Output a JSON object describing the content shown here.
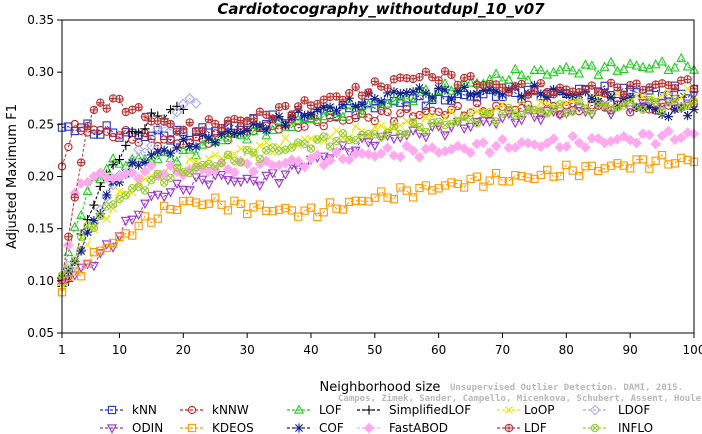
{
  "chart_data": {
    "type": "line",
    "title": "Cardiotocography_withoutdupl_10_v07",
    "xlabel": "Neighborhood size",
    "ylabel": "Adjusted Maximum F1",
    "xlim": [
      1,
      100
    ],
    "ylim": [
      0.05,
      0.35
    ],
    "x_ticks": [
      "1",
      "10",
      "20",
      "30",
      "40",
      "50",
      "60",
      "70",
      "80",
      "90",
      "100"
    ],
    "y_ticks": [
      "0.05",
      "0.10",
      "0.15",
      "0.20",
      "0.25",
      "0.30",
      "0.35"
    ],
    "grid": false,
    "legend_position": "bottom",
    "series": [
      {
        "name": "kNN",
        "color": "#2233cc",
        "marker": "square",
        "x_max": 100,
        "keypoints": [
          [
            1,
            0.245
          ],
          [
            3,
            0.248
          ],
          [
            5,
            0.245
          ],
          [
            8,
            0.243
          ],
          [
            12,
            0.24
          ],
          [
            20,
            0.24
          ],
          [
            30,
            0.25
          ],
          [
            40,
            0.258
          ],
          [
            50,
            0.268
          ],
          [
            60,
            0.275
          ],
          [
            70,
            0.28
          ],
          [
            80,
            0.28
          ],
          [
            90,
            0.282
          ],
          [
            100,
            0.28
          ]
        ]
      },
      {
        "name": "kNNW",
        "color": "#cc2222",
        "marker": "circle",
        "x_max": 100,
        "keypoints": [
          [
            1,
            0.215
          ],
          [
            3,
            0.245
          ],
          [
            5,
            0.245
          ],
          [
            10,
            0.24
          ],
          [
            15,
            0.235
          ],
          [
            20,
            0.232
          ],
          [
            25,
            0.238
          ],
          [
            30,
            0.245
          ],
          [
            40,
            0.252
          ],
          [
            50,
            0.258
          ],
          [
            60,
            0.262
          ],
          [
            70,
            0.265
          ],
          [
            80,
            0.266
          ],
          [
            90,
            0.267
          ],
          [
            100,
            0.267
          ]
        ]
      },
      {
        "name": "LOF",
        "color": "#22cc22",
        "marker": "triangle-up",
        "x_max": 100,
        "keypoints": [
          [
            1,
            0.1
          ],
          [
            3,
            0.15
          ],
          [
            5,
            0.185
          ],
          [
            8,
            0.21
          ],
          [
            12,
            0.215
          ],
          [
            20,
            0.22
          ],
          [
            25,
            0.235
          ],
          [
            30,
            0.24
          ],
          [
            40,
            0.255
          ],
          [
            50,
            0.268
          ],
          [
            60,
            0.282
          ],
          [
            70,
            0.295
          ],
          [
            80,
            0.302
          ],
          [
            90,
            0.305
          ],
          [
            100,
            0.307
          ]
        ]
      },
      {
        "name": "SimplifiedLOF",
        "color": "#000000",
        "marker": "plus",
        "x_max": 20,
        "keypoints": [
          [
            1,
            0.09
          ],
          [
            3,
            0.12
          ],
          [
            5,
            0.16
          ],
          [
            7,
            0.19
          ],
          [
            9,
            0.21
          ],
          [
            11,
            0.23
          ],
          [
            13,
            0.245
          ],
          [
            15,
            0.255
          ],
          [
            17,
            0.26
          ],
          [
            19,
            0.265
          ],
          [
            20,
            0.265
          ]
        ]
      },
      {
        "name": "LoOP",
        "color": "#e8e800",
        "marker": "x",
        "x_max": 100,
        "keypoints": [
          [
            1,
            0.095
          ],
          [
            5,
            0.14
          ],
          [
            10,
            0.18
          ],
          [
            15,
            0.2
          ],
          [
            20,
            0.21
          ],
          [
            30,
            0.225
          ],
          [
            40,
            0.235
          ],
          [
            50,
            0.245
          ],
          [
            60,
            0.255
          ],
          [
            70,
            0.265
          ],
          [
            80,
            0.27
          ],
          [
            90,
            0.275
          ],
          [
            100,
            0.278
          ]
        ]
      },
      {
        "name": "LDOF",
        "color": "#aaaaee",
        "marker": "diamond",
        "x_max": 22,
        "keypoints": [
          [
            1,
            0.1
          ],
          [
            4,
            0.13
          ],
          [
            7,
            0.17
          ],
          [
            10,
            0.2
          ],
          [
            13,
            0.22
          ],
          [
            16,
            0.24
          ],
          [
            19,
            0.26
          ],
          [
            21,
            0.275
          ],
          [
            22,
            0.272
          ]
        ]
      },
      {
        "name": "ODIN",
        "color": "#9933cc",
        "marker": "triangle-down",
        "x_max": 100,
        "keypoints": [
          [
            1,
            0.1
          ],
          [
            4,
            0.11
          ],
          [
            8,
            0.13
          ],
          [
            12,
            0.16
          ],
          [
            15,
            0.18
          ],
          [
            20,
            0.19
          ],
          [
            25,
            0.2
          ],
          [
            30,
            0.195
          ],
          [
            35,
            0.2
          ],
          [
            40,
            0.215
          ],
          [
            45,
            0.225
          ],
          [
            50,
            0.235
          ],
          [
            60,
            0.245
          ],
          [
            70,
            0.255
          ],
          [
            80,
            0.262
          ],
          [
            90,
            0.268
          ],
          [
            100,
            0.272
          ]
        ]
      },
      {
        "name": "KDEOS",
        "color": "#ff9900",
        "marker": "square",
        "x_max": 100,
        "keypoints": [
          [
            1,
            0.095
          ],
          [
            4,
            0.11
          ],
          [
            7,
            0.13
          ],
          [
            10,
            0.14
          ],
          [
            15,
            0.16
          ],
          [
            20,
            0.175
          ],
          [
            25,
            0.175
          ],
          [
            30,
            0.17
          ],
          [
            35,
            0.168
          ],
          [
            40,
            0.165
          ],
          [
            45,
            0.172
          ],
          [
            50,
            0.18
          ],
          [
            55,
            0.185
          ],
          [
            60,
            0.19
          ],
          [
            65,
            0.195
          ],
          [
            70,
            0.198
          ],
          [
            75,
            0.2
          ],
          [
            80,
            0.205
          ],
          [
            85,
            0.208
          ],
          [
            90,
            0.212
          ],
          [
            95,
            0.215
          ],
          [
            100,
            0.215
          ]
        ]
      },
      {
        "name": "COF",
        "color": "#112288",
        "marker": "asterisk",
        "x_max": 100,
        "keypoints": [
          [
            1,
            0.1
          ],
          [
            4,
            0.13
          ],
          [
            7,
            0.17
          ],
          [
            10,
            0.2
          ],
          [
            15,
            0.22
          ],
          [
            20,
            0.23
          ],
          [
            30,
            0.245
          ],
          [
            40,
            0.262
          ],
          [
            50,
            0.275
          ],
          [
            55,
            0.282
          ],
          [
            60,
            0.28
          ],
          [
            70,
            0.282
          ],
          [
            80,
            0.28
          ],
          [
            90,
            0.272
          ],
          [
            95,
            0.26
          ],
          [
            100,
            0.265
          ]
        ]
      },
      {
        "name": "FastABOD",
        "color": "#ffaaee",
        "marker": "diamond-filled",
        "x_max": 100,
        "keypoints": [
          [
            1,
            0.1
          ],
          [
            3,
            0.18
          ],
          [
            5,
            0.2
          ],
          [
            10,
            0.2
          ],
          [
            15,
            0.205
          ],
          [
            20,
            0.205
          ],
          [
            30,
            0.21
          ],
          [
            40,
            0.215
          ],
          [
            50,
            0.222
          ],
          [
            60,
            0.225
          ],
          [
            70,
            0.23
          ],
          [
            80,
            0.232
          ],
          [
            90,
            0.236
          ],
          [
            100,
            0.24
          ]
        ]
      },
      {
        "name": "LDF",
        "color": "#bb3333",
        "marker": "circle-plus",
        "x_max": 100,
        "keypoints": [
          [
            1,
            0.1
          ],
          [
            3,
            0.18
          ],
          [
            5,
            0.25
          ],
          [
            7,
            0.27
          ],
          [
            9,
            0.272
          ],
          [
            12,
            0.265
          ],
          [
            15,
            0.255
          ],
          [
            20,
            0.245
          ],
          [
            30,
            0.255
          ],
          [
            40,
            0.27
          ],
          [
            50,
            0.285
          ],
          [
            55,
            0.295
          ],
          [
            60,
            0.297
          ],
          [
            65,
            0.292
          ],
          [
            70,
            0.285
          ],
          [
            80,
            0.282
          ],
          [
            90,
            0.285
          ],
          [
            100,
            0.29
          ]
        ]
      },
      {
        "name": "INFLO",
        "color": "#99cc33",
        "marker": "circle-x",
        "x_max": 100,
        "keypoints": [
          [
            1,
            0.1
          ],
          [
            5,
            0.15
          ],
          [
            10,
            0.18
          ],
          [
            15,
            0.195
          ],
          [
            20,
            0.205
          ],
          [
            30,
            0.22
          ],
          [
            40,
            0.232
          ],
          [
            50,
            0.24
          ],
          [
            60,
            0.25
          ],
          [
            70,
            0.26
          ],
          [
            80,
            0.265
          ],
          [
            90,
            0.268
          ],
          [
            100,
            0.27
          ]
        ]
      }
    ]
  },
  "legend": {
    "items": [
      "kNN",
      "kNNW",
      "LOF",
      "SimplifiedLOF",
      "LoOP",
      "LDOF",
      "ODIN",
      "KDEOS",
      "COF",
      "FastABOD",
      "LDF",
      "INFLO"
    ]
  },
  "credit": {
    "line1": "Unsupervised Outlier Detection. DAMI, 2015.",
    "line2": "Campos, Zimek, Sander, Campello, Micenkova, Schubert, Assent, Houle"
  }
}
